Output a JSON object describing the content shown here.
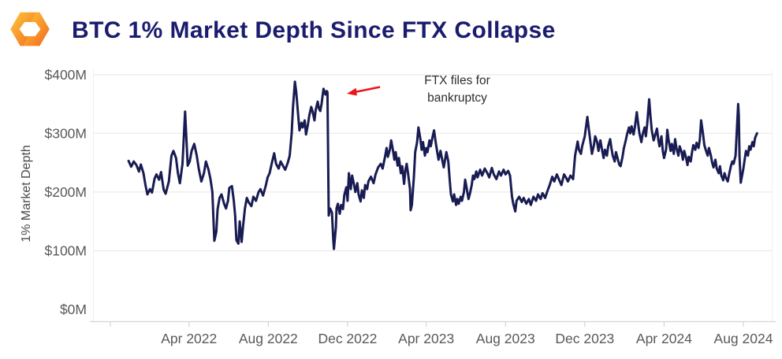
{
  "header": {
    "title": "BTC 1% Market Depth Since FTX Collapse",
    "logo": "kaiko-mark"
  },
  "colors": {
    "title_text": "#1b1c6e",
    "line": "#191c52",
    "axis_text": "#595959",
    "axis_title_text": "#4a4a4a",
    "gridline": "#ebebeb",
    "axis_line": "#d4d4d4",
    "annotation_text": "#2d2d2d",
    "arrow_red": "#ee1414",
    "logo_gradient_start": "#ffc83d",
    "logo_gradient_end": "#f1681d"
  },
  "chart_data": {
    "type": "line",
    "title": "BTC 1% Market Depth Since FTX Collapse",
    "xlabel": "",
    "ylabel": "1% Market Depth",
    "unit": "USD millions",
    "grid": "horizontal",
    "legend": "none",
    "ylim": [
      0,
      415
    ],
    "y_ticks": [
      {
        "value": 0,
        "label": "$0M"
      },
      {
        "value": 100,
        "label": "$100M"
      },
      {
        "value": 200,
        "label": "$200M"
      },
      {
        "value": 300,
        "label": "$300M"
      },
      {
        "value": 400,
        "label": "$400M"
      }
    ],
    "x_ticks": [
      {
        "date": "2021-12-01",
        "label": ""
      },
      {
        "date": "2022-04-01",
        "label": "Apr 2022"
      },
      {
        "date": "2022-08-01",
        "label": "Aug 2022"
      },
      {
        "date": "2022-12-01",
        "label": "Dec 2022"
      },
      {
        "date": "2023-04-01",
        "label": "Apr 2023"
      },
      {
        "date": "2023-08-01",
        "label": "Aug 2023"
      },
      {
        "date": "2023-12-01",
        "label": "Dec 2023"
      },
      {
        "date": "2024-04-01",
        "label": "Apr 2024"
      },
      {
        "date": "2024-08-01",
        "label": "Aug 2024"
      }
    ],
    "annotation": {
      "line1": "FTX files for",
      "line2": "bankruptcy",
      "points_to": "2022-11-05",
      "arrow_color": "#ee1414"
    },
    "line_color": "#191c52",
    "points": [
      [
        "2021-12-29",
        253
      ],
      [
        "2022-01-02",
        243
      ],
      [
        "2022-01-06",
        252
      ],
      [
        "2022-01-10",
        246
      ],
      [
        "2022-01-14",
        235
      ],
      [
        "2022-01-17",
        247
      ],
      [
        "2022-01-21",
        232
      ],
      [
        "2022-01-24",
        212
      ],
      [
        "2022-01-27",
        196
      ],
      [
        "2022-01-31",
        205
      ],
      [
        "2022-02-03",
        199
      ],
      [
        "2022-02-07",
        223
      ],
      [
        "2022-02-10",
        230
      ],
      [
        "2022-02-14",
        221
      ],
      [
        "2022-02-17",
        234
      ],
      [
        "2022-02-21",
        204
      ],
      [
        "2022-02-24",
        197
      ],
      [
        "2022-03-01",
        218
      ],
      [
        "2022-03-05",
        262
      ],
      [
        "2022-03-08",
        270
      ],
      [
        "2022-03-12",
        258
      ],
      [
        "2022-03-15",
        232
      ],
      [
        "2022-03-18",
        215
      ],
      [
        "2022-03-22",
        248
      ],
      [
        "2022-03-26",
        337
      ],
      [
        "2022-03-28",
        290
      ],
      [
        "2022-03-30",
        245
      ],
      [
        "2022-04-02",
        252
      ],
      [
        "2022-04-05",
        270
      ],
      [
        "2022-04-09",
        282
      ],
      [
        "2022-04-13",
        262
      ],
      [
        "2022-04-16",
        240
      ],
      [
        "2022-04-20",
        218
      ],
      [
        "2022-04-24",
        232
      ],
      [
        "2022-04-27",
        252
      ],
      [
        "2022-05-01",
        238
      ],
      [
        "2022-05-04",
        222
      ],
      [
        "2022-05-07",
        200
      ],
      [
        "2022-05-10",
        117
      ],
      [
        "2022-05-13",
        132
      ],
      [
        "2022-05-15",
        170
      ],
      [
        "2022-05-18",
        190
      ],
      [
        "2022-05-21",
        196
      ],
      [
        "2022-05-25",
        180
      ],
      [
        "2022-05-28",
        172
      ],
      [
        "2022-05-31",
        185
      ],
      [
        "2022-06-02",
        207
      ],
      [
        "2022-06-06",
        210
      ],
      [
        "2022-06-09",
        185
      ],
      [
        "2022-06-11",
        160
      ],
      [
        "2022-06-13",
        118
      ],
      [
        "2022-06-16",
        112
      ],
      [
        "2022-06-18",
        150
      ],
      [
        "2022-06-21",
        115
      ],
      [
        "2022-06-23",
        140
      ],
      [
        "2022-06-26",
        172
      ],
      [
        "2022-06-29",
        190
      ],
      [
        "2022-07-02",
        182
      ],
      [
        "2022-07-06",
        176
      ],
      [
        "2022-07-09",
        192
      ],
      [
        "2022-07-13",
        185
      ],
      [
        "2022-07-17",
        200
      ],
      [
        "2022-07-20",
        205
      ],
      [
        "2022-07-24",
        194
      ],
      [
        "2022-07-28",
        210
      ],
      [
        "2022-07-31",
        225
      ],
      [
        "2022-08-03",
        232
      ],
      [
        "2022-08-07",
        252
      ],
      [
        "2022-08-10",
        266
      ],
      [
        "2022-08-13",
        248
      ],
      [
        "2022-08-17",
        240
      ],
      [
        "2022-08-20",
        252
      ],
      [
        "2022-08-24",
        244
      ],
      [
        "2022-08-27",
        238
      ],
      [
        "2022-08-31",
        250
      ],
      [
        "2022-09-03",
        262
      ],
      [
        "2022-09-06",
        300
      ],
      [
        "2022-09-08",
        345
      ],
      [
        "2022-09-11",
        388
      ],
      [
        "2022-09-13",
        370
      ],
      [
        "2022-09-16",
        330
      ],
      [
        "2022-09-18",
        305
      ],
      [
        "2022-09-21",
        318
      ],
      [
        "2022-09-23",
        310
      ],
      [
        "2022-09-26",
        322
      ],
      [
        "2022-09-28",
        298
      ],
      [
        "2022-10-01",
        315
      ],
      [
        "2022-10-03",
        330
      ],
      [
        "2022-10-06",
        345
      ],
      [
        "2022-10-08",
        338
      ],
      [
        "2022-10-11",
        322
      ],
      [
        "2022-10-13",
        340
      ],
      [
        "2022-10-16",
        354
      ],
      [
        "2022-10-18",
        342
      ],
      [
        "2022-10-20",
        338
      ],
      [
        "2022-10-22",
        350
      ],
      [
        "2022-10-25",
        376
      ],
      [
        "2022-10-28",
        366
      ],
      [
        "2022-10-30",
        372
      ],
      [
        "2022-10-31",
        370
      ],
      [
        "2022-11-02",
        160
      ],
      [
        "2022-11-04",
        172
      ],
      [
        "2022-11-07",
        165
      ],
      [
        "2022-11-09",
        118
      ],
      [
        "2022-11-10",
        103
      ],
      [
        "2022-11-13",
        140
      ],
      [
        "2022-11-14",
        172
      ],
      [
        "2022-11-16",
        180
      ],
      [
        "2022-11-19",
        163
      ],
      [
        "2022-11-21",
        178
      ],
      [
        "2022-11-24",
        171
      ],
      [
        "2022-11-26",
        195
      ],
      [
        "2022-11-29",
        208
      ],
      [
        "2022-12-01",
        185
      ],
      [
        "2022-12-03",
        232
      ],
      [
        "2022-12-06",
        205
      ],
      [
        "2022-12-08",
        228
      ],
      [
        "2022-12-11",
        212
      ],
      [
        "2022-12-13",
        200
      ],
      [
        "2022-12-16",
        215
      ],
      [
        "2022-12-18",
        196
      ],
      [
        "2022-12-21",
        184
      ],
      [
        "2022-12-23",
        203
      ],
      [
        "2022-12-26",
        190
      ],
      [
        "2022-12-28",
        212
      ],
      [
        "2022-12-31",
        205
      ],
      [
        "2023-01-02",
        218
      ],
      [
        "2023-01-06",
        226
      ],
      [
        "2023-01-10",
        215
      ],
      [
        "2023-01-13",
        230
      ],
      [
        "2023-01-17",
        242
      ],
      [
        "2023-01-21",
        248
      ],
      [
        "2023-01-24",
        240
      ],
      [
        "2023-01-28",
        262
      ],
      [
        "2023-01-30",
        275
      ],
      [
        "2023-02-01",
        260
      ],
      [
        "2023-02-04",
        272
      ],
      [
        "2023-02-06",
        288
      ],
      [
        "2023-02-09",
        270
      ],
      [
        "2023-02-11",
        255
      ],
      [
        "2023-02-13",
        268
      ],
      [
        "2023-02-16",
        245
      ],
      [
        "2023-02-18",
        258
      ],
      [
        "2023-02-21",
        232
      ],
      [
        "2023-02-23",
        244
      ],
      [
        "2023-02-26",
        214
      ],
      [
        "2023-02-28",
        238
      ],
      [
        "2023-03-02",
        248
      ],
      [
        "2023-03-04",
        232
      ],
      [
        "2023-03-07",
        205
      ],
      [
        "2023-03-08",
        169
      ],
      [
        "2023-03-10",
        178
      ],
      [
        "2023-03-13",
        225
      ],
      [
        "2023-03-15",
        268
      ],
      [
        "2023-03-18",
        285
      ],
      [
        "2023-03-20",
        310
      ],
      [
        "2023-03-23",
        290
      ],
      [
        "2023-03-25",
        272
      ],
      [
        "2023-03-27",
        285
      ],
      [
        "2023-03-30",
        262
      ],
      [
        "2023-04-01",
        275
      ],
      [
        "2023-04-03",
        268
      ],
      [
        "2023-04-06",
        288
      ],
      [
        "2023-04-08",
        278
      ],
      [
        "2023-04-11",
        295
      ],
      [
        "2023-04-13",
        305
      ],
      [
        "2023-04-16",
        282
      ],
      [
        "2023-04-18",
        268
      ],
      [
        "2023-04-20",
        255
      ],
      [
        "2023-04-23",
        270
      ],
      [
        "2023-04-25",
        258
      ],
      [
        "2023-04-28",
        242
      ],
      [
        "2023-04-30",
        255
      ],
      [
        "2023-05-02",
        268
      ],
      [
        "2023-05-05",
        252
      ],
      [
        "2023-05-07",
        222
      ],
      [
        "2023-05-09",
        196
      ],
      [
        "2023-05-12",
        184
      ],
      [
        "2023-05-14",
        196
      ],
      [
        "2023-05-17",
        178
      ],
      [
        "2023-05-19",
        188
      ],
      [
        "2023-05-21",
        180
      ],
      [
        "2023-05-24",
        192
      ],
      [
        "2023-05-26",
        185
      ],
      [
        "2023-05-29",
        200
      ],
      [
        "2023-05-31",
        221
      ],
      [
        "2023-06-02",
        208
      ],
      [
        "2023-06-05",
        188
      ],
      [
        "2023-06-07",
        196
      ],
      [
        "2023-06-10",
        212
      ],
      [
        "2023-06-12",
        228
      ],
      [
        "2023-06-14",
        222
      ],
      [
        "2023-06-17",
        235
      ],
      [
        "2023-06-19",
        225
      ],
      [
        "2023-06-23",
        238
      ],
      [
        "2023-06-26",
        228
      ],
      [
        "2023-06-30",
        240
      ],
      [
        "2023-07-04",
        232
      ],
      [
        "2023-07-07",
        225
      ],
      [
        "2023-07-11",
        241
      ],
      [
        "2023-07-14",
        230
      ],
      [
        "2023-07-18",
        222
      ],
      [
        "2023-07-22",
        235
      ],
      [
        "2023-07-25",
        228
      ],
      [
        "2023-07-29",
        238
      ],
      [
        "2023-08-01",
        230
      ],
      [
        "2023-08-05",
        236
      ],
      [
        "2023-08-08",
        228
      ],
      [
        "2023-08-11",
        192
      ],
      [
        "2023-08-13",
        180
      ],
      [
        "2023-08-16",
        167
      ],
      [
        "2023-08-18",
        185
      ],
      [
        "2023-08-22",
        192
      ],
      [
        "2023-08-26",
        183
      ],
      [
        "2023-08-29",
        190
      ],
      [
        "2023-09-02",
        180
      ],
      [
        "2023-09-06",
        188
      ],
      [
        "2023-09-09",
        178
      ],
      [
        "2023-09-13",
        192
      ],
      [
        "2023-09-17",
        185
      ],
      [
        "2023-09-20",
        196
      ],
      [
        "2023-09-24",
        188
      ],
      [
        "2023-09-27",
        198
      ],
      [
        "2023-10-01",
        190
      ],
      [
        "2023-10-04",
        200
      ],
      [
        "2023-10-08",
        212
      ],
      [
        "2023-10-12",
        226
      ],
      [
        "2023-10-15",
        218
      ],
      [
        "2023-10-19",
        230
      ],
      [
        "2023-10-22",
        222
      ],
      [
        "2023-10-26",
        212
      ],
      [
        "2023-10-30",
        230
      ],
      [
        "2023-11-02",
        225
      ],
      [
        "2023-11-05",
        218
      ],
      [
        "2023-11-09",
        228
      ],
      [
        "2023-11-13",
        222
      ],
      [
        "2023-11-16",
        262
      ],
      [
        "2023-11-20",
        286
      ],
      [
        "2023-11-22",
        272
      ],
      [
        "2023-11-25",
        265
      ],
      [
        "2023-11-27",
        278
      ],
      [
        "2023-12-01",
        295
      ],
      [
        "2023-12-05",
        328
      ],
      [
        "2023-12-08",
        300
      ],
      [
        "2023-12-10",
        282
      ],
      [
        "2023-12-12",
        265
      ],
      [
        "2023-12-15",
        280
      ],
      [
        "2023-12-17",
        295
      ],
      [
        "2023-12-20",
        285
      ],
      [
        "2023-12-22",
        270
      ],
      [
        "2023-12-25",
        288
      ],
      [
        "2023-12-27",
        275
      ],
      [
        "2023-12-30",
        258
      ],
      [
        "2024-01-01",
        272
      ],
      [
        "2024-01-04",
        262
      ],
      [
        "2024-01-06",
        278
      ],
      [
        "2024-01-09",
        290
      ],
      [
        "2024-01-11",
        275
      ],
      [
        "2024-01-13",
        262
      ],
      [
        "2024-01-16",
        252
      ],
      [
        "2024-01-18",
        268
      ],
      [
        "2024-01-21",
        255
      ],
      [
        "2024-01-23",
        247
      ],
      [
        "2024-01-25",
        244
      ],
      [
        "2024-01-28",
        260
      ],
      [
        "2024-01-30",
        274
      ],
      [
        "2024-02-02",
        288
      ],
      [
        "2024-02-04",
        298
      ],
      [
        "2024-02-07",
        310
      ],
      [
        "2024-02-09",
        300
      ],
      [
        "2024-02-11",
        312
      ],
      [
        "2024-02-14",
        298
      ],
      [
        "2024-02-16",
        310
      ],
      [
        "2024-02-19",
        336
      ],
      [
        "2024-02-21",
        318
      ],
      [
        "2024-02-23",
        300
      ],
      [
        "2024-02-26",
        285
      ],
      [
        "2024-02-28",
        298
      ],
      [
        "2024-03-02",
        310
      ],
      [
        "2024-03-04",
        295
      ],
      [
        "2024-03-06",
        316
      ],
      [
        "2024-03-09",
        358
      ],
      [
        "2024-03-11",
        330
      ],
      [
        "2024-03-13",
        305
      ],
      [
        "2024-03-16",
        288
      ],
      [
        "2024-03-18",
        296
      ],
      [
        "2024-03-21",
        308
      ],
      [
        "2024-03-23",
        290
      ],
      [
        "2024-03-25",
        278
      ],
      [
        "2024-03-28",
        295
      ],
      [
        "2024-03-30",
        270
      ],
      [
        "2024-04-01",
        258
      ],
      [
        "2024-04-04",
        272
      ],
      [
        "2024-04-06",
        306
      ],
      [
        "2024-04-08",
        288
      ],
      [
        "2024-04-11",
        270
      ],
      [
        "2024-04-13",
        282
      ],
      [
        "2024-04-16",
        265
      ],
      [
        "2024-04-18",
        290
      ],
      [
        "2024-04-20",
        275
      ],
      [
        "2024-04-23",
        262
      ],
      [
        "2024-04-25",
        278
      ],
      [
        "2024-04-28",
        268
      ],
      [
        "2024-04-30",
        255
      ],
      [
        "2024-05-02",
        270
      ],
      [
        "2024-05-05",
        258
      ],
      [
        "2024-05-07",
        246
      ],
      [
        "2024-05-09",
        260
      ],
      [
        "2024-05-12",
        252
      ],
      [
        "2024-05-14",
        268
      ],
      [
        "2024-05-16",
        280
      ],
      [
        "2024-05-19",
        272
      ],
      [
        "2024-05-21",
        284
      ],
      [
        "2024-05-24",
        275
      ],
      [
        "2024-05-26",
        290
      ],
      [
        "2024-05-28",
        322
      ],
      [
        "2024-05-31",
        298
      ],
      [
        "2024-06-02",
        280
      ],
      [
        "2024-06-04",
        272
      ],
      [
        "2024-06-07",
        262
      ],
      [
        "2024-06-09",
        275
      ],
      [
        "2024-06-12",
        262
      ],
      [
        "2024-06-14",
        250
      ],
      [
        "2024-06-16",
        242
      ],
      [
        "2024-06-19",
        255
      ],
      [
        "2024-06-21",
        240
      ],
      [
        "2024-06-24",
        232
      ],
      [
        "2024-06-26",
        244
      ],
      [
        "2024-06-28",
        228
      ],
      [
        "2024-07-01",
        220
      ],
      [
        "2024-07-03",
        232
      ],
      [
        "2024-07-05",
        225
      ],
      [
        "2024-07-08",
        218
      ],
      [
        "2024-07-10",
        230
      ],
      [
        "2024-07-13",
        245
      ],
      [
        "2024-07-15",
        252
      ],
      [
        "2024-07-17",
        248
      ],
      [
        "2024-07-20",
        262
      ],
      [
        "2024-07-24",
        350
      ],
      [
        "2024-07-25",
        330
      ],
      [
        "2024-07-26",
        260
      ],
      [
        "2024-07-28",
        216
      ],
      [
        "2024-08-01",
        240
      ],
      [
        "2024-08-03",
        255
      ],
      [
        "2024-08-05",
        270
      ],
      [
        "2024-08-08",
        262
      ],
      [
        "2024-08-10",
        278
      ],
      [
        "2024-08-12",
        272
      ],
      [
        "2024-08-15",
        285
      ],
      [
        "2024-08-17",
        278
      ],
      [
        "2024-08-19",
        292
      ],
      [
        "2024-08-22",
        300
      ]
    ]
  }
}
